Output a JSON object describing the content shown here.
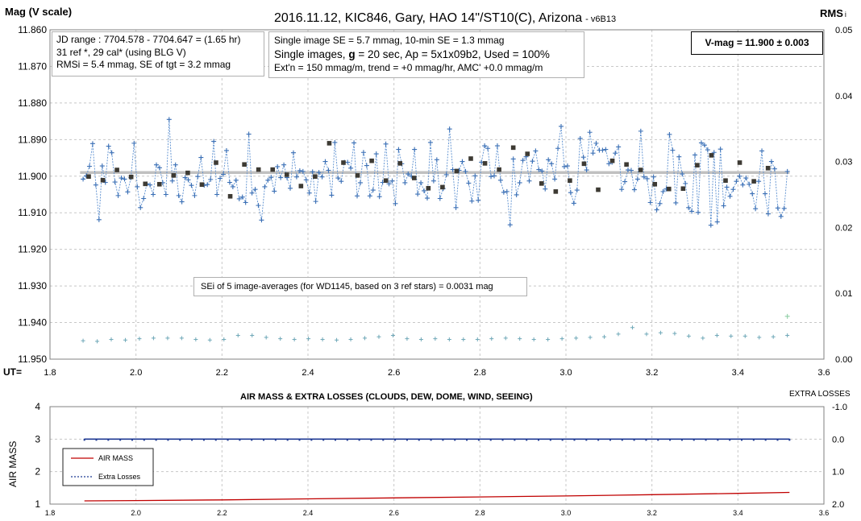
{
  "chart_data": [
    {
      "type": "scatter",
      "title": "2016.11.12, KIC846, Gary, HAO 14\"/ST10(C), Arizona",
      "title_suffix": "- v6B13",
      "ylabel": "Mag (V scale)",
      "y2label": "RMS",
      "y2label_suffix": "i",
      "xlabel": "UT=",
      "xlim": [
        1.8,
        3.6
      ],
      "ylim": [
        11.95,
        11.86
      ],
      "y2lim": [
        0.0,
        0.05
      ],
      "x_ticks": [
        "1.8",
        "2.0",
        "2.2",
        "2.4",
        "2.6",
        "2.8",
        "3.0",
        "3.2",
        "3.4",
        "3.6"
      ],
      "y_ticks": [
        "11.860",
        "11.870",
        "11.880",
        "11.890",
        "11.900",
        "11.910",
        "11.920",
        "11.930",
        "11.940",
        "11.950"
      ],
      "y2_ticks": [
        "0.05",
        "0.04",
        "0.03",
        "0.02",
        "0.01",
        "0.00"
      ],
      "grid": true,
      "reference_line": 11.899,
      "series": [],
      "series_single_mag": [
        11.9008,
        11.8999,
        11.8973,
        11.8911,
        11.9024,
        11.9119,
        11.8972,
        11.9017,
        11.8918,
        11.8936,
        11.9016,
        11.9053,
        11.9005,
        11.9008,
        11.9043,
        11.9004,
        11.891,
        11.9029,
        11.9086,
        11.9061,
        11.9021,
        11.9024,
        11.905,
        11.8969,
        11.8977,
        11.9018,
        11.905,
        11.8845,
        11.9013,
        11.8969,
        11.9053,
        11.907,
        11.9004,
        11.901,
        11.9025,
        11.9053,
        11.9001,
        11.8949,
        11.9025,
        11.9023,
        11.9009,
        11.8905,
        11.905,
        11.9006,
        11.8995,
        11.893,
        11.9017,
        11.9029,
        11.9011,
        11.9062,
        11.9057,
        11.9072,
        11.8885,
        11.9046,
        11.9036,
        11.908,
        11.912,
        11.9029,
        11.9011,
        11.9003,
        11.9041,
        11.8974,
        11.9004,
        11.8969,
        11.9004,
        11.9033,
        11.8936,
        11.9002,
        11.8985,
        11.8987,
        11.901,
        11.9046,
        11.8988,
        11.9069,
        11.899,
        11.9002,
        11.896,
        11.8984,
        11.9052,
        11.8908,
        11.9005,
        11.9014,
        11.8962,
        11.8962,
        11.8978,
        11.8909,
        11.9054,
        11.9018,
        11.8935,
        11.8971,
        11.9054,
        11.9038,
        11.8939,
        11.9056,
        11.9017,
        11.8912,
        11.9021,
        11.9013,
        11.9075,
        11.8927,
        11.8966,
        11.9018,
        11.8994,
        11.9,
        11.8927,
        11.9049,
        11.9018,
        11.904,
        11.906,
        11.8908,
        11.9013,
        11.8955,
        11.9061,
        11.9034,
        11.8996,
        11.8871,
        11.8982,
        11.9086,
        11.8984,
        11.896,
        11.8987,
        11.9019,
        11.9068,
        11.8999,
        11.9066,
        11.8962,
        11.8917,
        11.8924,
        11.9001,
        11.8999,
        11.8917,
        11.9011,
        11.9044,
        11.9042,
        11.9133,
        11.8953,
        11.9051,
        11.9018,
        11.8957,
        11.8947,
        11.9013,
        11.8959,
        11.8931,
        11.8982,
        11.8986,
        11.9035,
        11.8955,
        11.8966,
        11.9008,
        11.8924,
        11.8864,
        11.8974,
        11.8972,
        11.9045,
        11.9074,
        11.9038,
        11.8897,
        11.8948,
        11.8983,
        11.888,
        11.8937,
        11.891,
        11.8929,
        11.8929,
        11.8927,
        11.8966,
        11.8962,
        11.8937,
        11.892,
        11.9036,
        11.9015,
        11.8983,
        11.8984,
        11.9037,
        11.9008,
        11.8877,
        11.9002,
        11.9007,
        11.9072,
        11.9002,
        11.9092,
        11.9075,
        11.9042,
        11.9035,
        11.8886,
        11.8929,
        11.9073,
        11.8947,
        11.8994,
        11.902,
        11.9086,
        11.9096,
        11.8942,
        11.9099,
        11.8909,
        11.8915,
        11.8928,
        11.9134,
        11.8935,
        11.9125,
        11.8926,
        11.9081,
        11.903,
        11.9055,
        11.9036,
        11.9014,
        11.9,
        11.9024,
        11.9005,
        11.9022,
        11.9048,
        11.9089,
        11.9014,
        11.8931,
        11.9048,
        11.9103,
        11.896,
        11.898,
        11.9087,
        11.911,
        11.9088,
        11.8987
      ],
      "series_avg_mag": [
        11.9001,
        11.9011,
        11.8983,
        11.9002,
        11.9021,
        11.9022,
        11.8998,
        11.8991,
        11.9023,
        11.8963,
        11.9055,
        11.8968,
        11.8982,
        11.8982,
        11.8996,
        11.9027,
        11.9001,
        11.891,
        11.8963,
        11.8998,
        11.8958,
        11.9012,
        11.8965,
        11.9005,
        11.9033,
        11.903,
        11.8986,
        11.8952,
        11.8965,
        11.8982,
        11.8922,
        11.8939,
        11.902,
        11.9042,
        11.9012,
        11.8966,
        11.9037,
        11.8958,
        11.8968,
        11.8983,
        11.9022,
        11.9035,
        11.9034,
        11.897,
        11.8943,
        11.9012,
        11.8963,
        11.9014,
        11.8978
      ],
      "series_rms": [
        0.0028,
        0.0027,
        0.003,
        0.0029,
        0.0031,
        0.0032,
        0.0032,
        0.0032,
        0.003,
        0.0029,
        0.003,
        0.0036,
        0.0036,
        0.0033,
        0.0031,
        0.003,
        0.0031,
        0.003,
        0.0029,
        0.003,
        0.0032,
        0.0034,
        0.0036,
        0.0031,
        0.003,
        0.0031,
        0.003,
        0.003,
        0.003,
        0.0031,
        0.0032,
        0.0031,
        0.003,
        0.003,
        0.0031,
        0.0032,
        0.0033,
        0.0034,
        0.0038,
        0.0048,
        0.0038,
        0.004,
        0.0039,
        0.0035,
        0.0032,
        0.0036,
        0.0035,
        0.0035,
        0.0033,
        0.0034,
        0.0036
      ],
      "rms_last_point": 0.0065
    },
    {
      "type": "line",
      "title": "AIR MASS & EXTRA LOSSES (CLOUDS, DEW, DOME, WIND, SEEING)",
      "ylabel": "AIR MASS",
      "y2label": "EXTRA LOSSES",
      "xlim": [
        1.8,
        3.6
      ],
      "ylim": [
        1,
        4
      ],
      "y2lim": [
        -1.0,
        2.0
      ],
      "x_ticks": [
        "1.8",
        "2.0",
        "2.2",
        "2.4",
        "2.6",
        "2.8",
        "3.0",
        "3.2",
        "3.4",
        "3.6"
      ],
      "y_ticks": [
        "4",
        "3",
        "2",
        "1"
      ],
      "y2_ticks": [
        "-1.0",
        "0.0",
        "1.0",
        "2.0"
      ],
      "grid": true,
      "legend": "bottom-left",
      "series": [
        {
          "name": "AIR MASS",
          "color": "#c00000",
          "x": [
            1.88,
            2.0,
            2.2,
            2.4,
            2.6,
            2.8,
            3.0,
            3.2,
            3.4,
            3.52
          ],
          "values": [
            1.1,
            1.11,
            1.13,
            1.16,
            1.19,
            1.22,
            1.25,
            1.29,
            1.33,
            1.36
          ]
        },
        {
          "name": "Extra Losses",
          "color": "#1f3a93",
          "x": [
            1.88,
            3.52
          ],
          "values": [
            0.0,
            0.0
          ]
        }
      ]
    }
  ],
  "info_box_1": {
    "line1": "JD range  : 7704.578 - 7704.647  = (1.65 hr)",
    "line2": "31 ref *, 29 cal* (using BLG V)",
    "line3": "RMSi = 5.4 mmag, SE of tgt = 3.2 mmag"
  },
  "info_box_2": {
    "line1": "Single image SE = 5.7 mmag, 10-min SE = 1.3 mmag",
    "line2a": "Single images, ",
    "line2b": "g",
    "line2c": " = 20 sec, Ap = 5x1x09b2,  Used = 100%",
    "line3": "Ext'n = 150 mmag/m, trend = +0 mmag/hr, AMC' +0.0 mmag/m"
  },
  "vmag_box": {
    "text": "V-mag  = 11.900 ± 0.003"
  },
  "sei_box": {
    "text": "SEi of 5 image-averages (for WD1145, based on 3 ref stars) = 0.0031 mag"
  },
  "colors": {
    "points": "#3a6fb5",
    "line": "#5b8fd0",
    "avg": "#3d3a33",
    "ref": "#c0c0c0",
    "rms": "#6fa8b8",
    "grid": "#c8c8c8"
  }
}
